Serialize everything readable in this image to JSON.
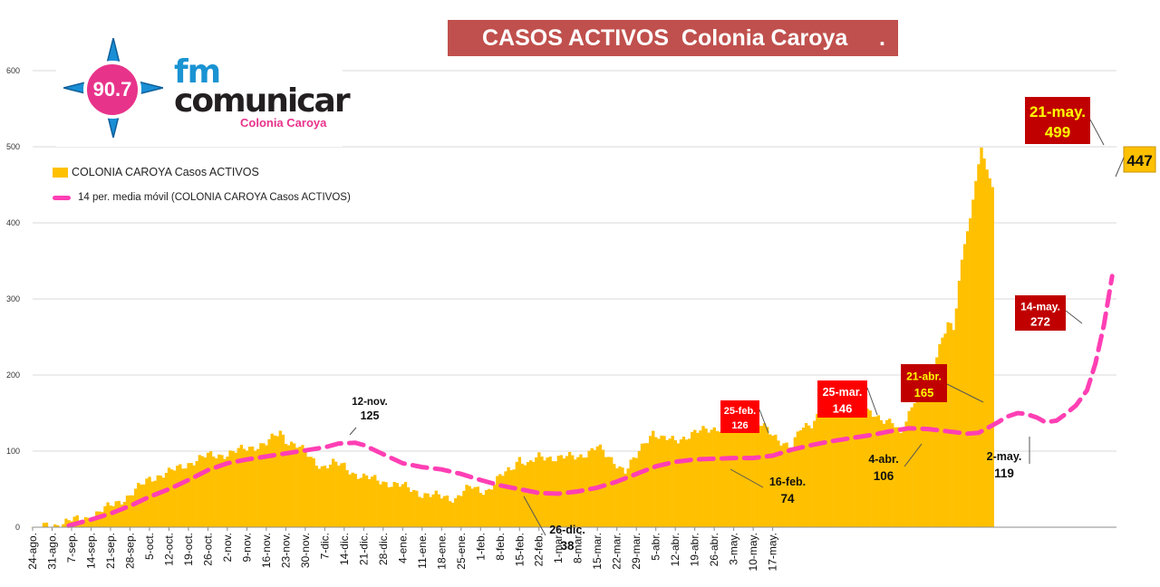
{
  "title": "CASOS ACTIVOS  Colonia Caroya     .",
  "logo": {
    "frequency": "90.7",
    "fm": "fm",
    "name": "comunicar",
    "sub": "Colonia Caroya"
  },
  "colors": {
    "bars": "#ffc000",
    "moving_average": "#ff3fb4",
    "title_bg": "#c0504d",
    "callout_dark": "#c00000",
    "callout_red": "#ff0000",
    "callout_yellow_text": "#ffff00",
    "final_label_bg": "#ffc000"
  },
  "legend": {
    "bars": "COLONIA CAROYA Casos ACTIVOS",
    "line": "14 per. media móvil (COLONIA CAROYA Casos ACTIVOS)"
  },
  "chart_data": {
    "type": "bar",
    "title": "CASOS ACTIVOS Colonia Caroya",
    "ylim": [
      0,
      600
    ],
    "y_ticks": [
      0,
      100,
      200,
      300,
      400,
      500,
      600
    ],
    "x_tick_labels": [
      "24-ago.",
      "31-ago.",
      "7-sep.",
      "14-sep.",
      "21-sep.",
      "28-sep.",
      "5-oct.",
      "12-oct.",
      "19-oct.",
      "26-oct.",
      "2-nov.",
      "9-nov.",
      "16-nov.",
      "23-nov.",
      "30-nov.",
      "7-dic.",
      "14-dic.",
      "21-dic.",
      "28-dic.",
      "4-ene.",
      "11-ene.",
      "18-ene.",
      "25-ene.",
      "1-feb.",
      "8-feb.",
      "15-feb.",
      "22-feb.",
      "1-mar.",
      "8-mar.",
      "15-mar.",
      "22-mar.",
      "29-mar.",
      "5-abr.",
      "12-abr.",
      "19-abr.",
      "26-abr.",
      "3-may.",
      "10-may.",
      "17-may."
    ],
    "series": [
      {
        "name": "COLONIA CAROYA Casos ACTIVOS",
        "type": "bar",
        "anchors": [
          [
            0,
            0
          ],
          [
            7,
            2
          ],
          [
            10,
            5
          ],
          [
            14,
            9
          ],
          [
            17,
            10
          ],
          [
            21,
            14
          ],
          [
            28,
            28
          ],
          [
            35,
            42
          ],
          [
            42,
            64
          ],
          [
            49,
            72
          ],
          [
            56,
            84
          ],
          [
            63,
            94
          ],
          [
            70,
            96
          ],
          [
            77,
            104
          ],
          [
            84,
            110
          ],
          [
            89,
            125
          ],
          [
            91,
            115
          ],
          [
            95,
            108
          ],
          [
            98,
            98
          ],
          [
            100,
            90
          ],
          [
            104,
            80
          ],
          [
            108,
            84
          ],
          [
            112,
            80
          ],
          [
            115,
            72
          ],
          [
            119,
            66
          ],
          [
            126,
            60
          ],
          [
            133,
            54
          ],
          [
            140,
            44
          ],
          [
            147,
            40
          ],
          [
            152,
            38
          ],
          [
            155,
            48
          ],
          [
            158,
            52
          ],
          [
            161,
            48
          ],
          [
            164,
            50
          ],
          [
            168,
            66
          ],
          [
            172,
            76
          ],
          [
            175,
            92
          ],
          [
            178,
            82
          ],
          [
            182,
            92
          ],
          [
            189,
            92
          ],
          [
            196,
            92
          ],
          [
            203,
            106
          ],
          [
            206,
            94
          ],
          [
            210,
            84
          ],
          [
            213,
            74
          ],
          [
            217,
            92
          ],
          [
            220,
            112
          ],
          [
            223,
            126
          ],
          [
            226,
            116
          ],
          [
            231,
            114
          ],
          [
            238,
            124
          ],
          [
            245,
            130
          ],
          [
            252,
            136
          ],
          [
            256,
            146
          ],
          [
            259,
            140
          ],
          [
            262,
            134
          ],
          [
            266,
            120
          ],
          [
            270,
            112
          ],
          [
            273,
            106
          ],
          [
            276,
            128
          ],
          [
            280,
            136
          ],
          [
            284,
            160
          ],
          [
            287,
            158
          ],
          [
            291,
            152
          ],
          [
            294,
            165
          ],
          [
            297,
            148
          ],
          [
            301,
            150
          ],
          [
            305,
            144
          ],
          [
            309,
            138
          ],
          [
            312,
            119
          ],
          [
            315,
            150
          ],
          [
            318,
            180
          ],
          [
            321,
            195
          ],
          [
            324,
            210
          ],
          [
            327,
            250
          ],
          [
            329,
            272
          ],
          [
            331,
            262
          ],
          [
            333,
            320
          ],
          [
            335,
            372
          ],
          [
            337,
            406
          ],
          [
            339,
            455
          ],
          [
            341,
            499
          ],
          [
            343,
            470
          ],
          [
            345,
            447
          ]
        ]
      },
      {
        "name": "14 per. media móvil (COLONIA CAROYA Casos ACTIVOS)",
        "type": "line",
        "anchors": [
          [
            13,
            2
          ],
          [
            21,
            10
          ],
          [
            28,
            18
          ],
          [
            35,
            28
          ],
          [
            42,
            40
          ],
          [
            49,
            50
          ],
          [
            56,
            62
          ],
          [
            63,
            75
          ],
          [
            70,
            84
          ],
          [
            77,
            89
          ],
          [
            84,
            93
          ],
          [
            91,
            97
          ],
          [
            98,
            101
          ],
          [
            105,
            105
          ],
          [
            110,
            110
          ],
          [
            116,
            111
          ],
          [
            119,
            108
          ],
          [
            126,
            96
          ],
          [
            133,
            84
          ],
          [
            140,
            79
          ],
          [
            147,
            76
          ],
          [
            154,
            70
          ],
          [
            161,
            62
          ],
          [
            168,
            55
          ],
          [
            175,
            50
          ],
          [
            182,
            45
          ],
          [
            189,
            44
          ],
          [
            196,
            47
          ],
          [
            203,
            52
          ],
          [
            210,
            60
          ],
          [
            217,
            70
          ],
          [
            224,
            80
          ],
          [
            231,
            86
          ],
          [
            238,
            89
          ],
          [
            245,
            90
          ],
          [
            252,
            91
          ],
          [
            259,
            91
          ],
          [
            266,
            94
          ],
          [
            273,
            102
          ],
          [
            280,
            108
          ],
          [
            287,
            113
          ],
          [
            294,
            117
          ],
          [
            301,
            121
          ],
          [
            308,
            126
          ],
          [
            315,
            130
          ],
          [
            322,
            129
          ],
          [
            329,
            126
          ],
          [
            336,
            123
          ],
          [
            340,
            124
          ],
          [
            343,
            130
          ],
          [
            347,
            138
          ],
          [
            350,
            145
          ],
          [
            354,
            150
          ],
          [
            357,
            149
          ],
          [
            361,
            144
          ],
          [
            364,
            138
          ],
          [
            368,
            140
          ],
          [
            371,
            148
          ],
          [
            375,
            160
          ],
          [
            379,
            180
          ],
          [
            382,
            215
          ],
          [
            385,
            265
          ],
          [
            388,
            330
          ]
        ]
      }
    ],
    "annotations": [
      {
        "date": "12-nov.",
        "value": "125"
      },
      {
        "date": "26-dic.",
        "value": "38"
      },
      {
        "date": "16-feb.",
        "value": "74"
      },
      {
        "date": "25-feb.",
        "value": "126"
      },
      {
        "date": "25-mar.",
        "value": "146"
      },
      {
        "date": "4-abr.",
        "value": "106"
      },
      {
        "date": "21-abr.",
        "value": "165"
      },
      {
        "date": "2-may.",
        "value": "119"
      },
      {
        "date": "14-may.",
        "value": "272"
      },
      {
        "date": "21-may.",
        "value": "499"
      },
      {
        "date": "",
        "value": "447"
      }
    ]
  }
}
